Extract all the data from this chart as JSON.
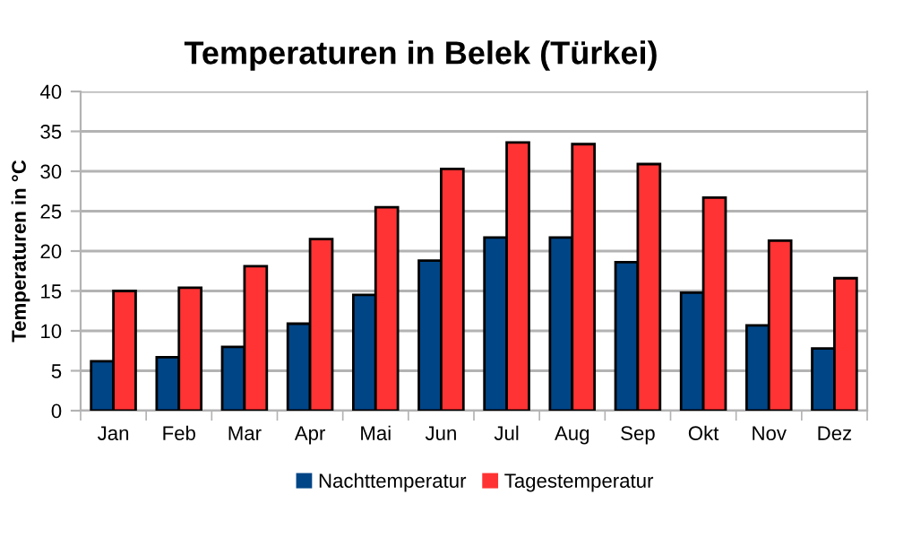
{
  "chart_data": {
    "type": "bar",
    "title": "Temperaturen in Belek (Türkei)",
    "ylabel": "Temperaturen in °C",
    "categories": [
      "Jan",
      "Feb",
      "Mar",
      "Apr",
      "Mai",
      "Jun",
      "Jul",
      "Aug",
      "Sep",
      "Okt",
      "Nov",
      "Dez"
    ],
    "series": [
      {
        "name": "Nachttemperatur",
        "color": "#004586",
        "values": [
          6.2,
          6.7,
          8.0,
          10.9,
          14.5,
          18.8,
          21.7,
          21.7,
          18.6,
          14.8,
          10.7,
          7.8
        ]
      },
      {
        "name": "Tagestemperatur",
        "color": "#ff3333",
        "values": [
          15.0,
          15.4,
          18.1,
          21.5,
          25.5,
          30.3,
          33.6,
          33.4,
          30.9,
          26.7,
          21.3,
          16.6
        ]
      }
    ],
    "ylim": [
      0,
      40
    ],
    "yticks": [
      0,
      5,
      10,
      15,
      20,
      25,
      30,
      35,
      40
    ],
    "grid": "y",
    "legend": "bottom"
  }
}
